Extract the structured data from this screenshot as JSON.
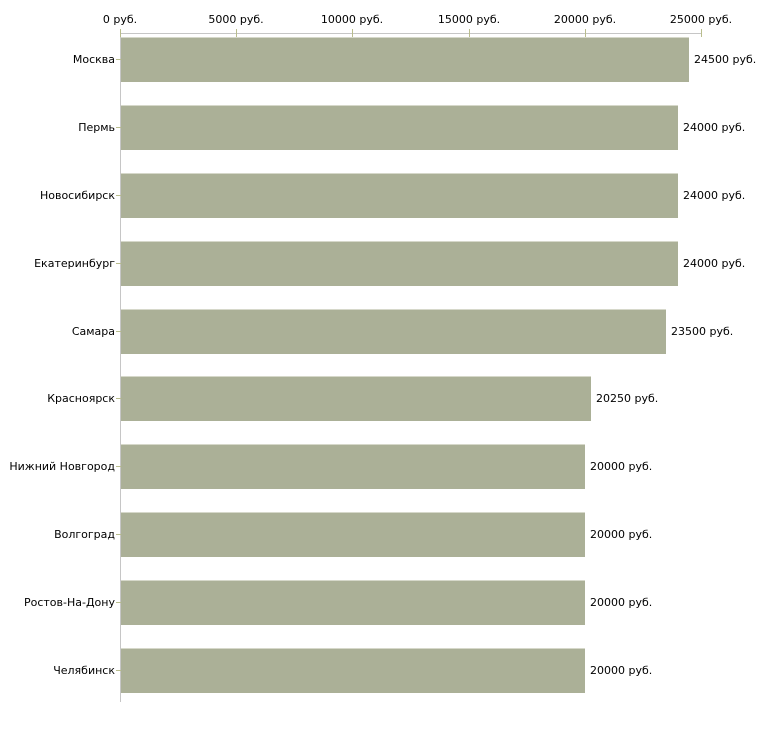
{
  "chart_data": {
    "type": "bar",
    "orientation": "horizontal",
    "title": "",
    "xlabel": "",
    "ylabel": "",
    "unit_suffix": " руб.",
    "categories": [
      "Москва",
      "Пермь",
      "Новосибирск",
      "Екатеринбург",
      "Самара",
      "Красноярск",
      "Нижний Новгород",
      "Волгоград",
      "Ростов-На-Дону",
      "Челябинск"
    ],
    "values": [
      24500,
      24000,
      24000,
      24000,
      23500,
      20250,
      20000,
      20000,
      20000,
      20000
    ],
    "bar_value_labels": [
      "24500 руб.",
      "24000 руб.",
      "24000 руб.",
      "24000 руб.",
      "23500 руб.",
      "20250 руб.",
      "20000 руб.",
      "20000 руб.",
      "20000 руб.",
      "20000 руб."
    ],
    "x_axis": {
      "position": "top",
      "min": 0,
      "max": 25000,
      "ticks": [
        0,
        5000,
        10000,
        15000,
        20000,
        25000
      ],
      "tick_labels": [
        "0 руб.",
        "5000 руб.",
        "10000 руб.",
        "15000 руб.",
        "20000 руб.",
        "25000 руб."
      ]
    },
    "grid": false,
    "legend": false,
    "colors": {
      "background": "#ffffff",
      "bar_fill": "#abb097",
      "bar_top_edge": "#d6d8ca",
      "axis_line": "#c6c6c6",
      "tick_mark": "#b9bd8d",
      "text": "#000000"
    }
  }
}
